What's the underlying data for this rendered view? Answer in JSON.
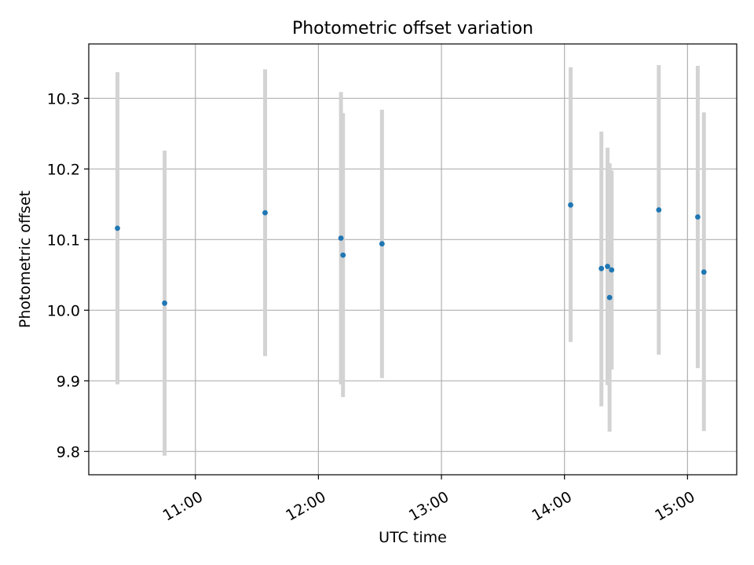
{
  "chart_data": {
    "type": "scatter",
    "title": "Photometric offset variation",
    "xlabel": "UTC time",
    "ylabel": "Photometric offset",
    "xlim": [
      "10:08",
      "15:24"
    ],
    "ylim": [
      9.767,
      10.377
    ],
    "x_ticks": [
      {
        "value": "11:00",
        "label": "11:00"
      },
      {
        "value": "12:00",
        "label": "12:00"
      },
      {
        "value": "13:00",
        "label": "13:00"
      },
      {
        "value": "14:00",
        "label": "14:00"
      },
      {
        "value": "15:00",
        "label": "15:00"
      }
    ],
    "y_ticks": [
      {
        "value": 9.8,
        "label": "9.8"
      },
      {
        "value": 9.9,
        "label": "9.9"
      },
      {
        "value": 10.0,
        "label": "10.0"
      },
      {
        "value": 10.1,
        "label": "10.1"
      },
      {
        "value": 10.2,
        "label": "10.2"
      },
      {
        "value": 10.3,
        "label": "10.3"
      }
    ],
    "grid": true,
    "colors": {
      "marker": "#1f77b4",
      "errorbar": "#d3d3d3",
      "grid": "#b0b0b0"
    },
    "series": [
      {
        "points": [
          {
            "x": "10:22",
            "y": 10.116,
            "ylow": 9.895,
            "yhigh": 10.337
          },
          {
            "x": "10:45",
            "y": 10.01,
            "ylow": 9.794,
            "yhigh": 10.226
          },
          {
            "x": "11:34",
            "y": 10.138,
            "ylow": 9.935,
            "yhigh": 10.341
          },
          {
            "x": "12:11",
            "y": 10.102,
            "ylow": 9.895,
            "yhigh": 10.309
          },
          {
            "x": "12:12",
            "y": 10.078,
            "ylow": 9.877,
            "yhigh": 10.279
          },
          {
            "x": "12:31",
            "y": 10.094,
            "ylow": 9.904,
            "yhigh": 10.284
          },
          {
            "x": "14:03",
            "y": 10.149,
            "ylow": 9.955,
            "yhigh": 10.344
          },
          {
            "x": "14:18",
            "y": 10.059,
            "ylow": 9.864,
            "yhigh": 10.253
          },
          {
            "x": "14:21",
            "y": 10.062,
            "ylow": 9.894,
            "yhigh": 10.23
          },
          {
            "x": "14:22",
            "y": 10.018,
            "ylow": 9.828,
            "yhigh": 10.208
          },
          {
            "x": "14:23",
            "y": 10.057,
            "ylow": 9.916,
            "yhigh": 10.198
          },
          {
            "x": "14:46",
            "y": 10.142,
            "ylow": 9.937,
            "yhigh": 10.347
          },
          {
            "x": "15:05",
            "y": 10.132,
            "ylow": 9.918,
            "yhigh": 10.346
          },
          {
            "x": "15:08",
            "y": 10.054,
            "ylow": 9.829,
            "yhigh": 10.28
          }
        ]
      }
    ]
  }
}
